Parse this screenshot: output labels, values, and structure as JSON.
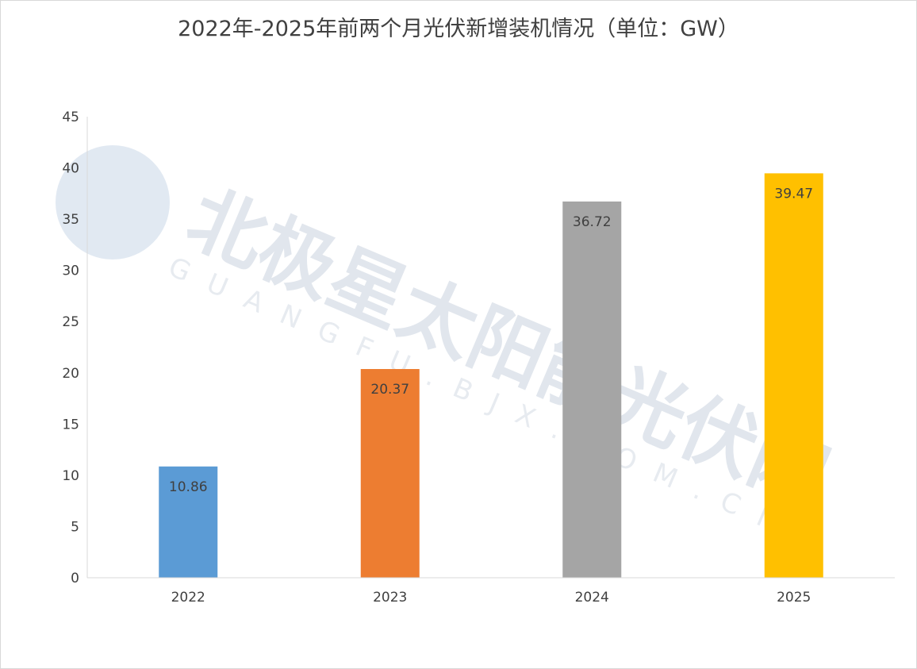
{
  "chart_data": {
    "type": "bar",
    "title": "2022年-2025年前两个月光伏新增装机情况（单位：GW）",
    "categories": [
      "2022",
      "2023",
      "2024",
      "2025"
    ],
    "values": [
      10.86,
      20.37,
      36.72,
      39.47
    ],
    "data_labels": [
      "10.86",
      "20.37",
      "36.72",
      "39.47"
    ],
    "colors": [
      "#5b9bd5",
      "#ed7d31",
      "#a5a5a5",
      "#ffc000"
    ],
    "xlabel": "",
    "ylabel": "",
    "ylim": [
      0,
      45
    ],
    "yticks": [
      "0",
      "5",
      "10",
      "15",
      "20",
      "25",
      "30",
      "35",
      "40",
      "45"
    ],
    "grid": false,
    "legend": "none"
  },
  "watermark": {
    "text": "北极星太阳能光伏网",
    "subtext": "GUANGFU.BJX.COM.CN",
    "color": "#dbe4ef"
  }
}
